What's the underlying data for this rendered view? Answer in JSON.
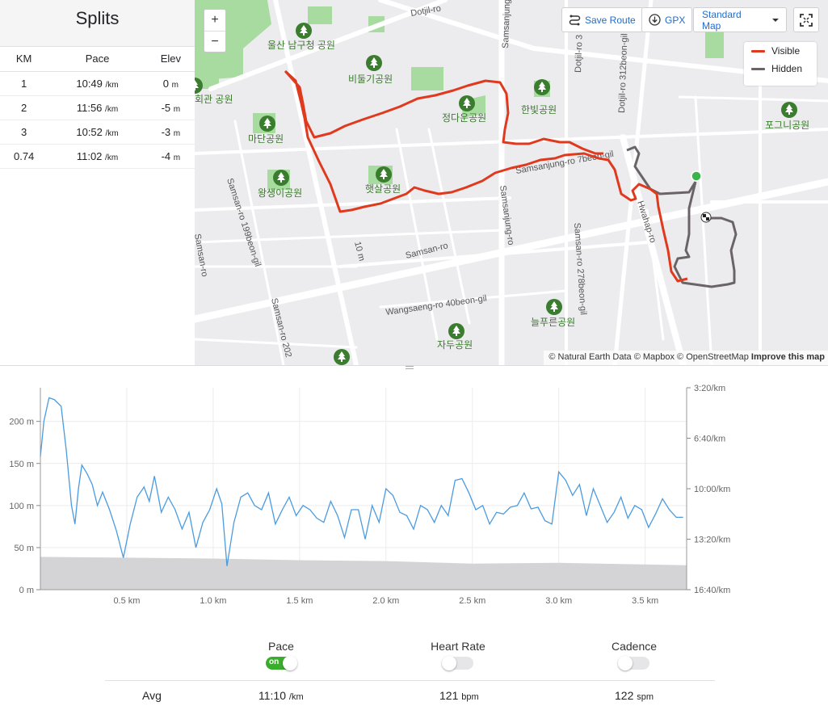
{
  "splits": {
    "title": "Splits",
    "headers": [
      "KM",
      "Pace",
      "Elev"
    ],
    "rows": [
      {
        "km": "1",
        "pace": "10:49",
        "pace_unit": "/km",
        "elev": "0",
        "elev_unit": "m"
      },
      {
        "km": "2",
        "pace": "11:56",
        "pace_unit": "/km",
        "elev": "-5",
        "elev_unit": "m"
      },
      {
        "km": "3",
        "pace": "10:52",
        "pace_unit": "/km",
        "elev": "-3",
        "elev_unit": "m"
      },
      {
        "km": "0.74",
        "pace": "11:02",
        "pace_unit": "/km",
        "elev": "-4",
        "elev_unit": "m"
      }
    ]
  },
  "map": {
    "zoom_in": "+",
    "zoom_out": "−",
    "save_route": "Save Route",
    "gpx": "GPX",
    "map_style": "Standard Map",
    "legend": [
      {
        "label": "Visible",
        "color": "#e03a1e"
      },
      {
        "label": "Hidden",
        "color": "#6b6467"
      }
    ],
    "attribution": {
      "text": "© Natural Earth Data © Mapbox © OpenStreetMap",
      "improve": "Improve this map"
    },
    "road_labels": [
      "Dotjil-ro",
      "Samsanjung-ro",
      "Dotjil-ro 3",
      "Dotjil-ro 312beon-gil",
      "Samsanjung-ro 7beon-gil",
      "Samsan-ro",
      "Samsanjung-ro",
      "Samsan-ro 199beon-gil",
      "Samsan-ro",
      "Hwahap-ro",
      "Samsan-ro 278beon-gil",
      "Wangsaeng-ro 40beon-gil",
      "Samsan-ro 202",
      "10 m"
    ],
    "park_labels": [
      "울산 남구청 공원",
      "비둘기공원",
      "정다운공원",
      "한빛공원",
      "포그니공원",
      "회관 공원",
      "마단공원",
      "왕생이공원",
      "햇살공원",
      "늘푸른공원",
      "자두공원"
    ],
    "park_icon": "tree-icon",
    "colors": {
      "visible": "#e03a1e",
      "hidden": "#6b6467",
      "start": "#39b54a",
      "park": "#a8dba0"
    }
  },
  "chart_data": {
    "type": "line",
    "x_unit": "km",
    "xlim": [
      0,
      3.74
    ],
    "x_ticks": [
      "0.5 km",
      "1.0 km",
      "1.5 km",
      "2.0 km",
      "2.5 km",
      "3.0 km",
      "3.5 km"
    ],
    "y_left": {
      "ticks": [
        "0 m",
        "50 m",
        "100 m",
        "150 m",
        "200 m"
      ],
      "ylim": [
        0,
        240
      ]
    },
    "y_right": {
      "ticks": [
        "3:20/km",
        "6:40/km",
        "10:00/km",
        "13:20/km",
        "16:40/km"
      ]
    },
    "grid": true,
    "series": [
      {
        "name": "Pace",
        "color": "#4a9be0",
        "x": [
          0.0,
          0.02,
          0.05,
          0.08,
          0.12,
          0.15,
          0.18,
          0.2,
          0.22,
          0.24,
          0.27,
          0.3,
          0.33,
          0.36,
          0.4,
          0.44,
          0.48,
          0.52,
          0.56,
          0.6,
          0.63,
          0.66,
          0.7,
          0.74,
          0.78,
          0.82,
          0.86,
          0.9,
          0.94,
          0.98,
          1.02,
          1.05,
          1.08,
          1.12,
          1.16,
          1.2,
          1.24,
          1.28,
          1.32,
          1.36,
          1.4,
          1.44,
          1.48,
          1.52,
          1.56,
          1.6,
          1.64,
          1.68,
          1.72,
          1.76,
          1.8,
          1.84,
          1.88,
          1.92,
          1.96,
          2.0,
          2.04,
          2.08,
          2.12,
          2.16,
          2.2,
          2.24,
          2.28,
          2.32,
          2.36,
          2.4,
          2.44,
          2.48,
          2.52,
          2.56,
          2.6,
          2.64,
          2.68,
          2.72,
          2.76,
          2.8,
          2.84,
          2.88,
          2.92,
          2.96,
          3.0,
          3.04,
          3.08,
          3.12,
          3.16,
          3.2,
          3.24,
          3.28,
          3.32,
          3.36,
          3.4,
          3.44,
          3.48,
          3.52,
          3.56,
          3.6,
          3.64,
          3.68,
          3.72
        ],
        "y": [
          158,
          200,
          228,
          226,
          218,
          165,
          100,
          78,
          120,
          148,
          138,
          125,
          100,
          116,
          95,
          70,
          38,
          78,
          110,
          122,
          105,
          135,
          92,
          110,
          95,
          72,
          92,
          50,
          80,
          95,
          120,
          102,
          28,
          80,
          110,
          115,
          100,
          95,
          115,
          78,
          95,
          110,
          88,
          100,
          95,
          85,
          80,
          105,
          88,
          62,
          95,
          95,
          60,
          100,
          80,
          120,
          112,
          92,
          88,
          72,
          100,
          95,
          80,
          100,
          88,
          130,
          132,
          115,
          95,
          100,
          78,
          92,
          90,
          98,
          100,
          115,
          96,
          98,
          82,
          78,
          140,
          130,
          112,
          125,
          88,
          120,
          100,
          80,
          92,
          110,
          85,
          100,
          95,
          74,
          90,
          108,
          95,
          86,
          86
        ]
      },
      {
        "name": "Elevation",
        "color": "#d4d4d6",
        "x": [
          0.0,
          0.5,
          1.0,
          1.5,
          2.0,
          2.5,
          3.0,
          3.5,
          3.74
        ],
        "y": [
          39,
          38,
          37,
          35,
          34,
          31,
          32,
          30,
          29
        ]
      }
    ]
  },
  "streams": [
    {
      "label": "Pace",
      "state": "on",
      "on_text": "on",
      "avg": "11:10",
      "unit": "/km"
    },
    {
      "label": "Heart Rate",
      "state": "off",
      "on_text": "",
      "avg": "121",
      "unit": "bpm"
    },
    {
      "label": "Cadence",
      "state": "off",
      "on_text": "",
      "avg": "122",
      "unit": "spm"
    }
  ],
  "avg_label": "Avg"
}
